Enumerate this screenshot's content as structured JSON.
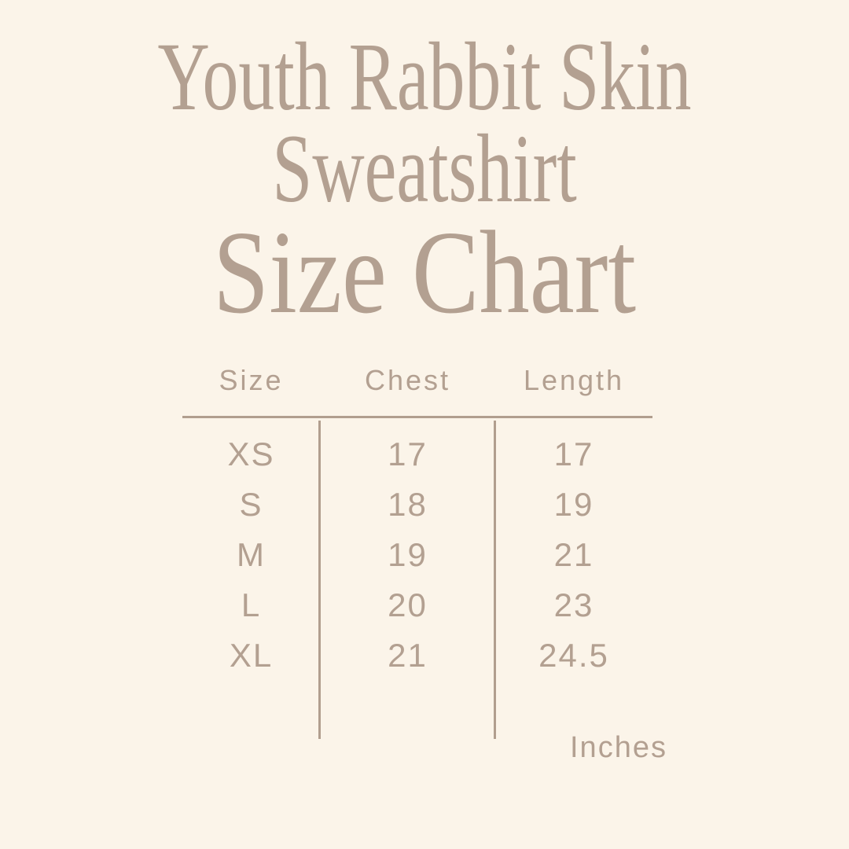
{
  "colors": {
    "background": "#fbf4e9",
    "text": "#b3a091",
    "rule": "#b19e8e"
  },
  "title": {
    "line1": "Youth Rabbit Skin",
    "line2": "Sweatshirt",
    "heading": "Size Chart"
  },
  "chart_data": {
    "type": "table",
    "title": "Youth Rabbit Skin Sweatshirt Size Chart",
    "columns": [
      "Size",
      "Chest",
      "Length"
    ],
    "rows": [
      [
        "XS",
        "17",
        "17"
      ],
      [
        "S",
        "18",
        "19"
      ],
      [
        "M",
        "19",
        "21"
      ],
      [
        "L",
        "20",
        "23"
      ],
      [
        "XL",
        "21",
        "24.5"
      ]
    ],
    "series": [
      {
        "name": "Chest",
        "values": [
          17,
          18,
          19,
          20,
          21
        ]
      },
      {
        "name": "Length",
        "values": [
          17,
          19,
          21,
          23,
          24.5
        ]
      }
    ],
    "categories": [
      "XS",
      "S",
      "M",
      "L",
      "XL"
    ],
    "unit_label": "Inches",
    "layout": {
      "legend": "none",
      "grid": "horizontal rule under header, vertical dividers between columns"
    }
  }
}
